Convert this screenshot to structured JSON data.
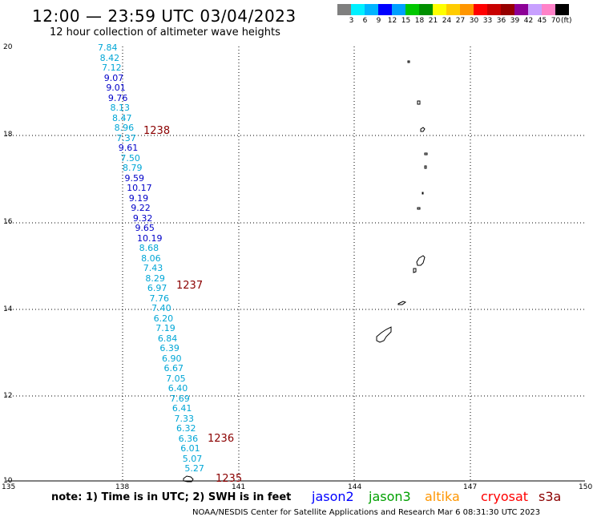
{
  "header": {
    "title": "12:00 — 23:59 UTC 03/04/2023",
    "subtitle": "12 hour collection of altimeter wave heights"
  },
  "legend": {
    "colors": [
      "#7f7f7f",
      "#00f0ff",
      "#00b4ff",
      "#0000ff",
      "#00a0ff",
      "#00c800",
      "#009000",
      "#ffff00",
      "#ffcc00",
      "#ff9600",
      "#ff0000",
      "#c80000",
      "#960000",
      "#8c0096",
      "#c8a0ff",
      "#ff82c8",
      "#000000"
    ],
    "labels": [
      "3",
      "6",
      "9",
      "12",
      "15",
      "18",
      "21",
      "24",
      "27",
      "30",
      "33",
      "36",
      "39",
      "42",
      "45",
      "70"
    ],
    "unit": "(ft)"
  },
  "axes": {
    "y_ticks": [
      "20",
      "18",
      "16",
      "14",
      "12",
      "10"
    ],
    "x_ticks": [
      "135",
      "138",
      "141",
      "144",
      "147",
      "150"
    ]
  },
  "observations": [
    {
      "v": "7.84",
      "c": "lb"
    },
    {
      "v": "8.42",
      "c": "lb"
    },
    {
      "v": "7.12",
      "c": "lb"
    },
    {
      "v": "9.07",
      "c": "db"
    },
    {
      "v": "9.01",
      "c": "db"
    },
    {
      "v": "9.76",
      "c": "db"
    },
    {
      "v": "8.13",
      "c": "lb"
    },
    {
      "v": "8.47",
      "c": "lb"
    },
    {
      "v": "8.96",
      "c": "lb"
    },
    {
      "v": "7.37",
      "c": "lb"
    },
    {
      "v": "9.61",
      "c": "db"
    },
    {
      "v": "7.50",
      "c": "lb"
    },
    {
      "v": "8.79",
      "c": "lb"
    },
    {
      "v": "9.59",
      "c": "db"
    },
    {
      "v": "10.17",
      "c": "db"
    },
    {
      "v": "9.19",
      "c": "db"
    },
    {
      "v": "9.22",
      "c": "db"
    },
    {
      "v": "9.32",
      "c": "db"
    },
    {
      "v": "9.65",
      "c": "db"
    },
    {
      "v": "10.19",
      "c": "db"
    },
    {
      "v": "8.68",
      "c": "lb"
    },
    {
      "v": "8.06",
      "c": "lb"
    },
    {
      "v": "7.43",
      "c": "lb"
    },
    {
      "v": "8.29",
      "c": "lb"
    },
    {
      "v": "6.97",
      "c": "lb"
    },
    {
      "v": "7.76",
      "c": "lb"
    },
    {
      "v": "7.40",
      "c": "lb"
    },
    {
      "v": "6.20",
      "c": "lb"
    },
    {
      "v": "7.19",
      "c": "lb"
    },
    {
      "v": "6.84",
      "c": "lb"
    },
    {
      "v": "6.39",
      "c": "lb"
    },
    {
      "v": "6.90",
      "c": "lb"
    },
    {
      "v": "6.67",
      "c": "lb"
    },
    {
      "v": "7.05",
      "c": "lb"
    },
    {
      "v": "6.40",
      "c": "lb"
    },
    {
      "v": "7.69",
      "c": "lb"
    },
    {
      "v": "6.41",
      "c": "lb"
    },
    {
      "v": "7.33",
      "c": "lb"
    },
    {
      "v": "6.32",
      "c": "lb"
    },
    {
      "v": "6.36",
      "c": "lb"
    },
    {
      "v": "6.01",
      "c": "lb"
    },
    {
      "v": "5.07",
      "c": "lb"
    },
    {
      "v": "5.27",
      "c": "lb"
    }
  ],
  "time_labels": [
    "1238",
    "1237",
    "1236",
    "1235"
  ],
  "note": "note:  1) Time is in UTC;  2) SWH is in feet",
  "satellites": [
    {
      "name": "jason2",
      "color": "#0000ff"
    },
    {
      "name": "jason3",
      "color": "#00a000"
    },
    {
      "name": "altika",
      "color": "#ff9600"
    },
    {
      "name": "cryosat",
      "color": "#ff0000"
    },
    {
      "name": "s3a",
      "color": "#8b0000"
    }
  ],
  "footer": "NOAA/NESDIS Center for Satellite Applications and Research    Mar  6 08:31:30 UTC 2023"
}
